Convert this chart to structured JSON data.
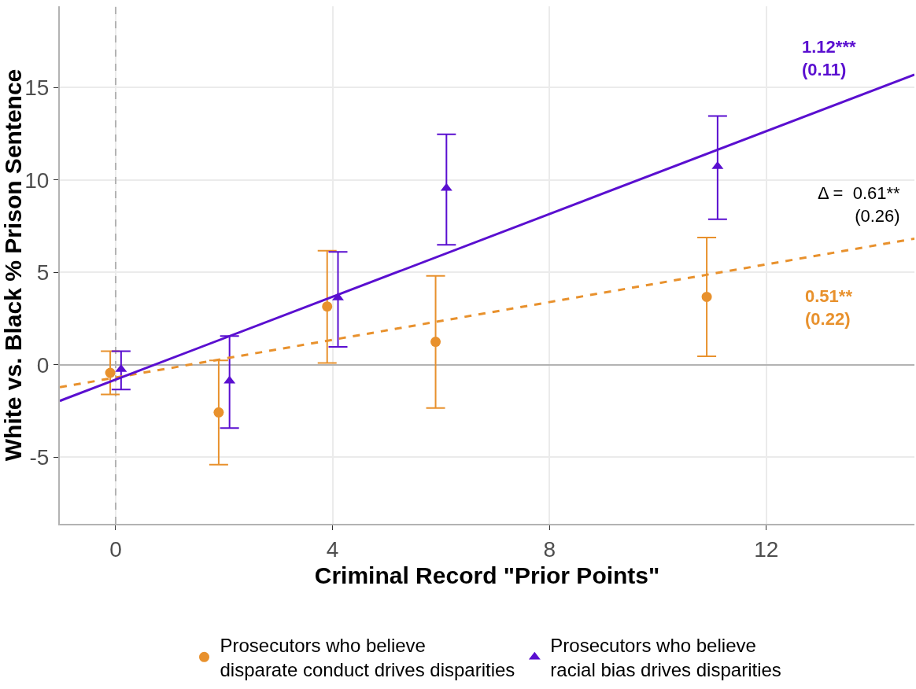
{
  "chart_data": {
    "type": "scatter",
    "xlabel": "Criminal Record \"Prior Points\"",
    "ylabel": "White vs. Black % Prison Sentence",
    "xlim": [
      -1.03,
      14.73
    ],
    "xticks": [
      0,
      4,
      8,
      12
    ],
    "ylim": [
      -8.6,
      19.4
    ],
    "yticks": [
      -5,
      0,
      5,
      10,
      15
    ],
    "grid": true,
    "legend": "bottom",
    "series": [
      {
        "name": "Prosecutors who believe\ndisparate conduct drives disparities",
        "color": "#e8912d",
        "marker": "circle",
        "x": [
          -0.1,
          1.9,
          3.9,
          5.9,
          10.9
        ],
        "values": [
          -0.43,
          -2.57,
          3.16,
          1.25,
          3.68
        ],
        "errors": [
          [
            -1.6,
            0.74
          ],
          [
            -5.4,
            0.24
          ],
          [
            0.1,
            6.18
          ],
          [
            -2.33,
            4.82
          ],
          [
            0.46,
            6.89
          ]
        ]
      },
      {
        "name": "Prosecutors who believe\nracial bias drives disparities",
        "color": "#5a0fd0",
        "marker": "triangle",
        "x": [
          0.1,
          2.1,
          4.1,
          6.1,
          11.1
        ],
        "values": [
          -0.24,
          -0.87,
          3.63,
          9.56,
          10.74
        ],
        "errors": [
          [
            -1.33,
            0.74
          ],
          [
            -3.42,
            1.56
          ],
          [
            0.97,
            6.11
          ],
          [
            6.5,
            12.47
          ],
          [
            7.88,
            13.46
          ]
        ]
      },
      {
        "type": "line",
        "color": "#e8912d",
        "line_style": "dashed",
        "x": [
          -1.03,
          14.73
        ],
        "values": [
          -1.21,
          6.83
        ]
      },
      {
        "type": "line",
        "color": "#5a0fd0",
        "line_style": "solid",
        "x": [
          -1.03,
          14.73
        ],
        "values": [
          -1.95,
          15.7
        ]
      }
    ],
    "ref_lines": [
      {
        "axis": "x",
        "value": 0,
        "color": "#b3b3b3",
        "line_style": "dashed"
      },
      {
        "axis": "y",
        "value": 0,
        "color": "#b3b3b3",
        "line_style": "solid"
      }
    ],
    "annotations": [
      "1.12***\n(0.11)",
      "Δ =  0.61**\n(0.26)",
      "0.51**\n(0.22)"
    ]
  }
}
